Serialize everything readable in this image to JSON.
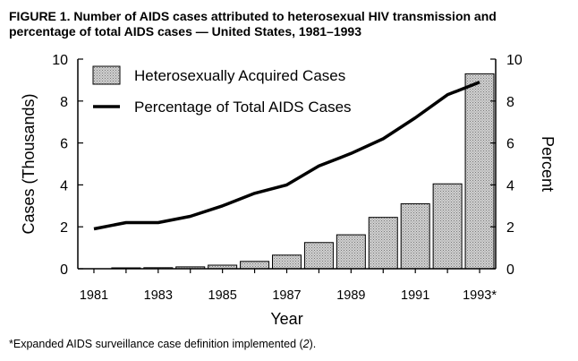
{
  "figure": {
    "title_line1": "FIGURE 1. Number of AIDS cases attributed to heterosexual HIV transmission and",
    "title_line2": "percentage of total AIDS cases — United States, 1981–1993"
  },
  "footnote": {
    "marker": "*",
    "text": "Expanded AIDS surveillance case definition implemented (",
    "ref": "2",
    "end": ")."
  },
  "chart_data": {
    "type": "bar",
    "categories": [
      "1981",
      "1982",
      "1983",
      "1984",
      "1985",
      "1986",
      "1987",
      "1988",
      "1989",
      "1990",
      "1991",
      "1992",
      "1993"
    ],
    "series": [
      {
        "name": "Heterosexually Acquired Cases",
        "kind": "bar",
        "axis": "left",
        "values": [
          0,
          0.02,
          0.05,
          0.09,
          0.17,
          0.35,
          0.65,
          1.25,
          1.62,
          2.45,
          3.1,
          4.05,
          9.3
        ]
      },
      {
        "name": "Percentage of Total AIDS Cases",
        "kind": "line",
        "axis": "right",
        "values": [
          1.9,
          2.2,
          2.2,
          2.5,
          3.0,
          3.6,
          4.0,
          4.9,
          5.5,
          6.2,
          7.2,
          8.3,
          8.9
        ]
      }
    ],
    "x_tick_labels": [
      "1981",
      "1983",
      "1985",
      "1987",
      "1989",
      "1991",
      "1993*"
    ],
    "xlabel": "Year",
    "ylabel": "Cases (Thousands)",
    "y2label": "Percent",
    "ylim": [
      0,
      10
    ],
    "y2lim": [
      0,
      10
    ],
    "y_ticks": [
      0,
      2,
      4,
      6,
      8,
      10
    ],
    "y2_ticks": [
      0,
      2,
      4,
      6,
      8,
      10
    ],
    "grid": false,
    "legend_position": "top-left",
    "bar_color": "#c8c8c8",
    "line_color": "#000000"
  }
}
